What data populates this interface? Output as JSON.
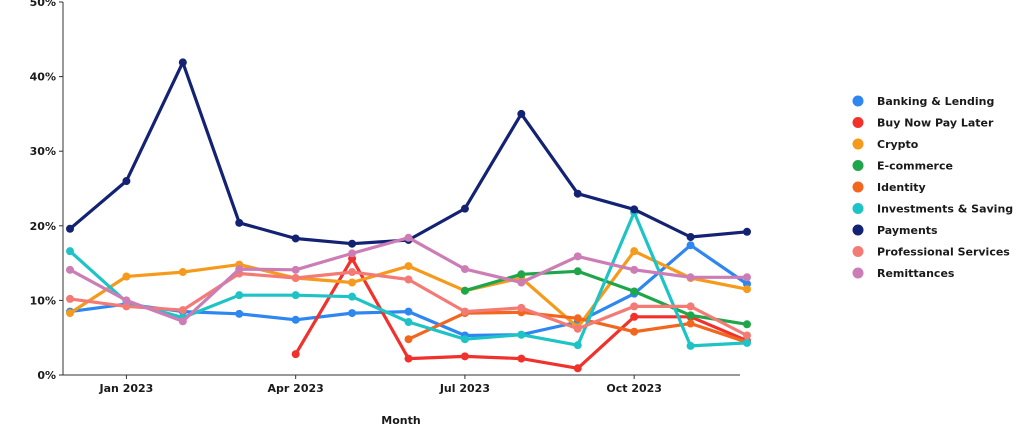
{
  "chart_data": {
    "type": "line",
    "title": "",
    "xlabel": "Month",
    "ylabel": "",
    "ylim": [
      0,
      50
    ],
    "y_ticks": [
      {
        "value": 0,
        "label": "0%"
      },
      {
        "value": 10,
        "label": "10%"
      },
      {
        "value": 20,
        "label": "20%"
      },
      {
        "value": 30,
        "label": "30%"
      },
      {
        "value": 40,
        "label": "40%"
      },
      {
        "value": 50,
        "label": "50%"
      }
    ],
    "x": [
      "Dec 2022",
      "Jan 2023",
      "Feb 2023",
      "Mar 2023",
      "Apr 2023",
      "May 2023",
      "Jun 2023",
      "Jul 2023",
      "Aug 2023",
      "Sep 2023",
      "Oct 2023",
      "Nov 2023",
      "Dec 2023"
    ],
    "x_tick_labels": [
      {
        "index": 1,
        "label": "Jan 2023"
      },
      {
        "index": 4,
        "label": "Apr 2023"
      },
      {
        "index": 7,
        "label": "Jul 2023"
      },
      {
        "index": 10,
        "label": "Oct 2023"
      }
    ],
    "legend_position": "right",
    "series": [
      {
        "name": "Banking & Lending",
        "color": "#2e86f0",
        "values": [
          8.5,
          9.5,
          8.5,
          8.2,
          7.4,
          8.3,
          8.5,
          5.3,
          5.4,
          7.1,
          10.9,
          17.4,
          12.2
        ]
      },
      {
        "name": "Buy Now Pay Later",
        "color": "#f0312c",
        "values": [
          null,
          null,
          null,
          null,
          2.8,
          15.6,
          2.2,
          2.5,
          2.2,
          0.9,
          7.8,
          7.8,
          4.6
        ]
      },
      {
        "name": "Crypto",
        "color": "#f59a1b",
        "values": [
          8.3,
          13.2,
          13.8,
          14.8,
          13.0,
          12.4,
          14.6,
          11.3,
          13.0,
          6.4,
          16.6,
          13.0,
          11.5
        ]
      },
      {
        "name": "E-commerce",
        "color": "#1fa64a",
        "values": [
          null,
          null,
          null,
          null,
          null,
          null,
          null,
          11.3,
          13.5,
          13.9,
          11.2,
          8.0,
          6.8
        ]
      },
      {
        "name": "Identity",
        "color": "#f2661e",
        "values": [
          null,
          null,
          null,
          null,
          null,
          null,
          4.8,
          8.3,
          8.4,
          7.6,
          5.8,
          6.9,
          4.4
        ]
      },
      {
        "name": "Investments & Saving",
        "color": "#1ec3c6",
        "values": [
          16.6,
          9.8,
          7.7,
          10.7,
          10.7,
          10.5,
          7.1,
          4.8,
          5.4,
          4.0,
          21.8,
          3.9,
          4.3
        ]
      },
      {
        "name": "Payments",
        "color": "#142273",
        "values": [
          19.6,
          26.0,
          41.9,
          20.4,
          18.3,
          17.6,
          18.1,
          22.3,
          35.0,
          24.3,
          22.2,
          18.5,
          19.2
        ]
      },
      {
        "name": "Professional Services",
        "color": "#f47b75",
        "values": [
          10.2,
          9.2,
          8.7,
          13.6,
          13.0,
          13.8,
          12.8,
          8.5,
          9.0,
          6.2,
          9.2,
          9.2,
          5.3
        ]
      },
      {
        "name": "Remittances",
        "color": "#cd7db6",
        "values": [
          14.1,
          10.0,
          7.2,
          14.2,
          14.1,
          16.3,
          18.4,
          14.2,
          12.4,
          15.9,
          14.1,
          13.1,
          13.1
        ]
      }
    ]
  }
}
